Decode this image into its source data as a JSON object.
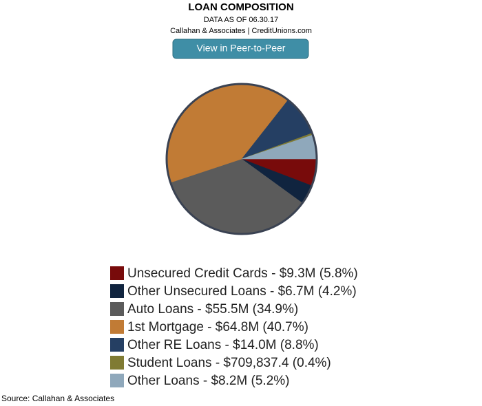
{
  "chart_data": {
    "type": "pie",
    "title": "LOAN COMPOSITION",
    "subtitle": "DATA AS OF 06.30.17",
    "attribution": "Callahan & Associates | CreditUnions.com",
    "categories": [
      "Unsecured Credit Cards - $9.3M (5.8%)",
      "Other Unsecured Loans - $6.7M (4.2%)",
      "Auto Loans - $55.5M (34.9%)",
      "1st Mortgage - $64.8M (40.7%)",
      "Other RE Loans - $14.0M (8.8%)",
      "Student Loans - $709,837.4 (0.4%)",
      "Other Loans - $8.2M (5.2%)"
    ],
    "values": [
      5.8,
      4.2,
      34.9,
      40.7,
      8.8,
      0.4,
      5.2
    ],
    "colors": [
      "#780b0b",
      "#10243f",
      "#5b5b5b",
      "#c17b35",
      "#253f63",
      "#807b33",
      "#8fa8bb"
    ],
    "legend": "bottom"
  },
  "button": {
    "label": "View in Peer-to-Peer"
  },
  "source": "Source: Callahan & Associates"
}
